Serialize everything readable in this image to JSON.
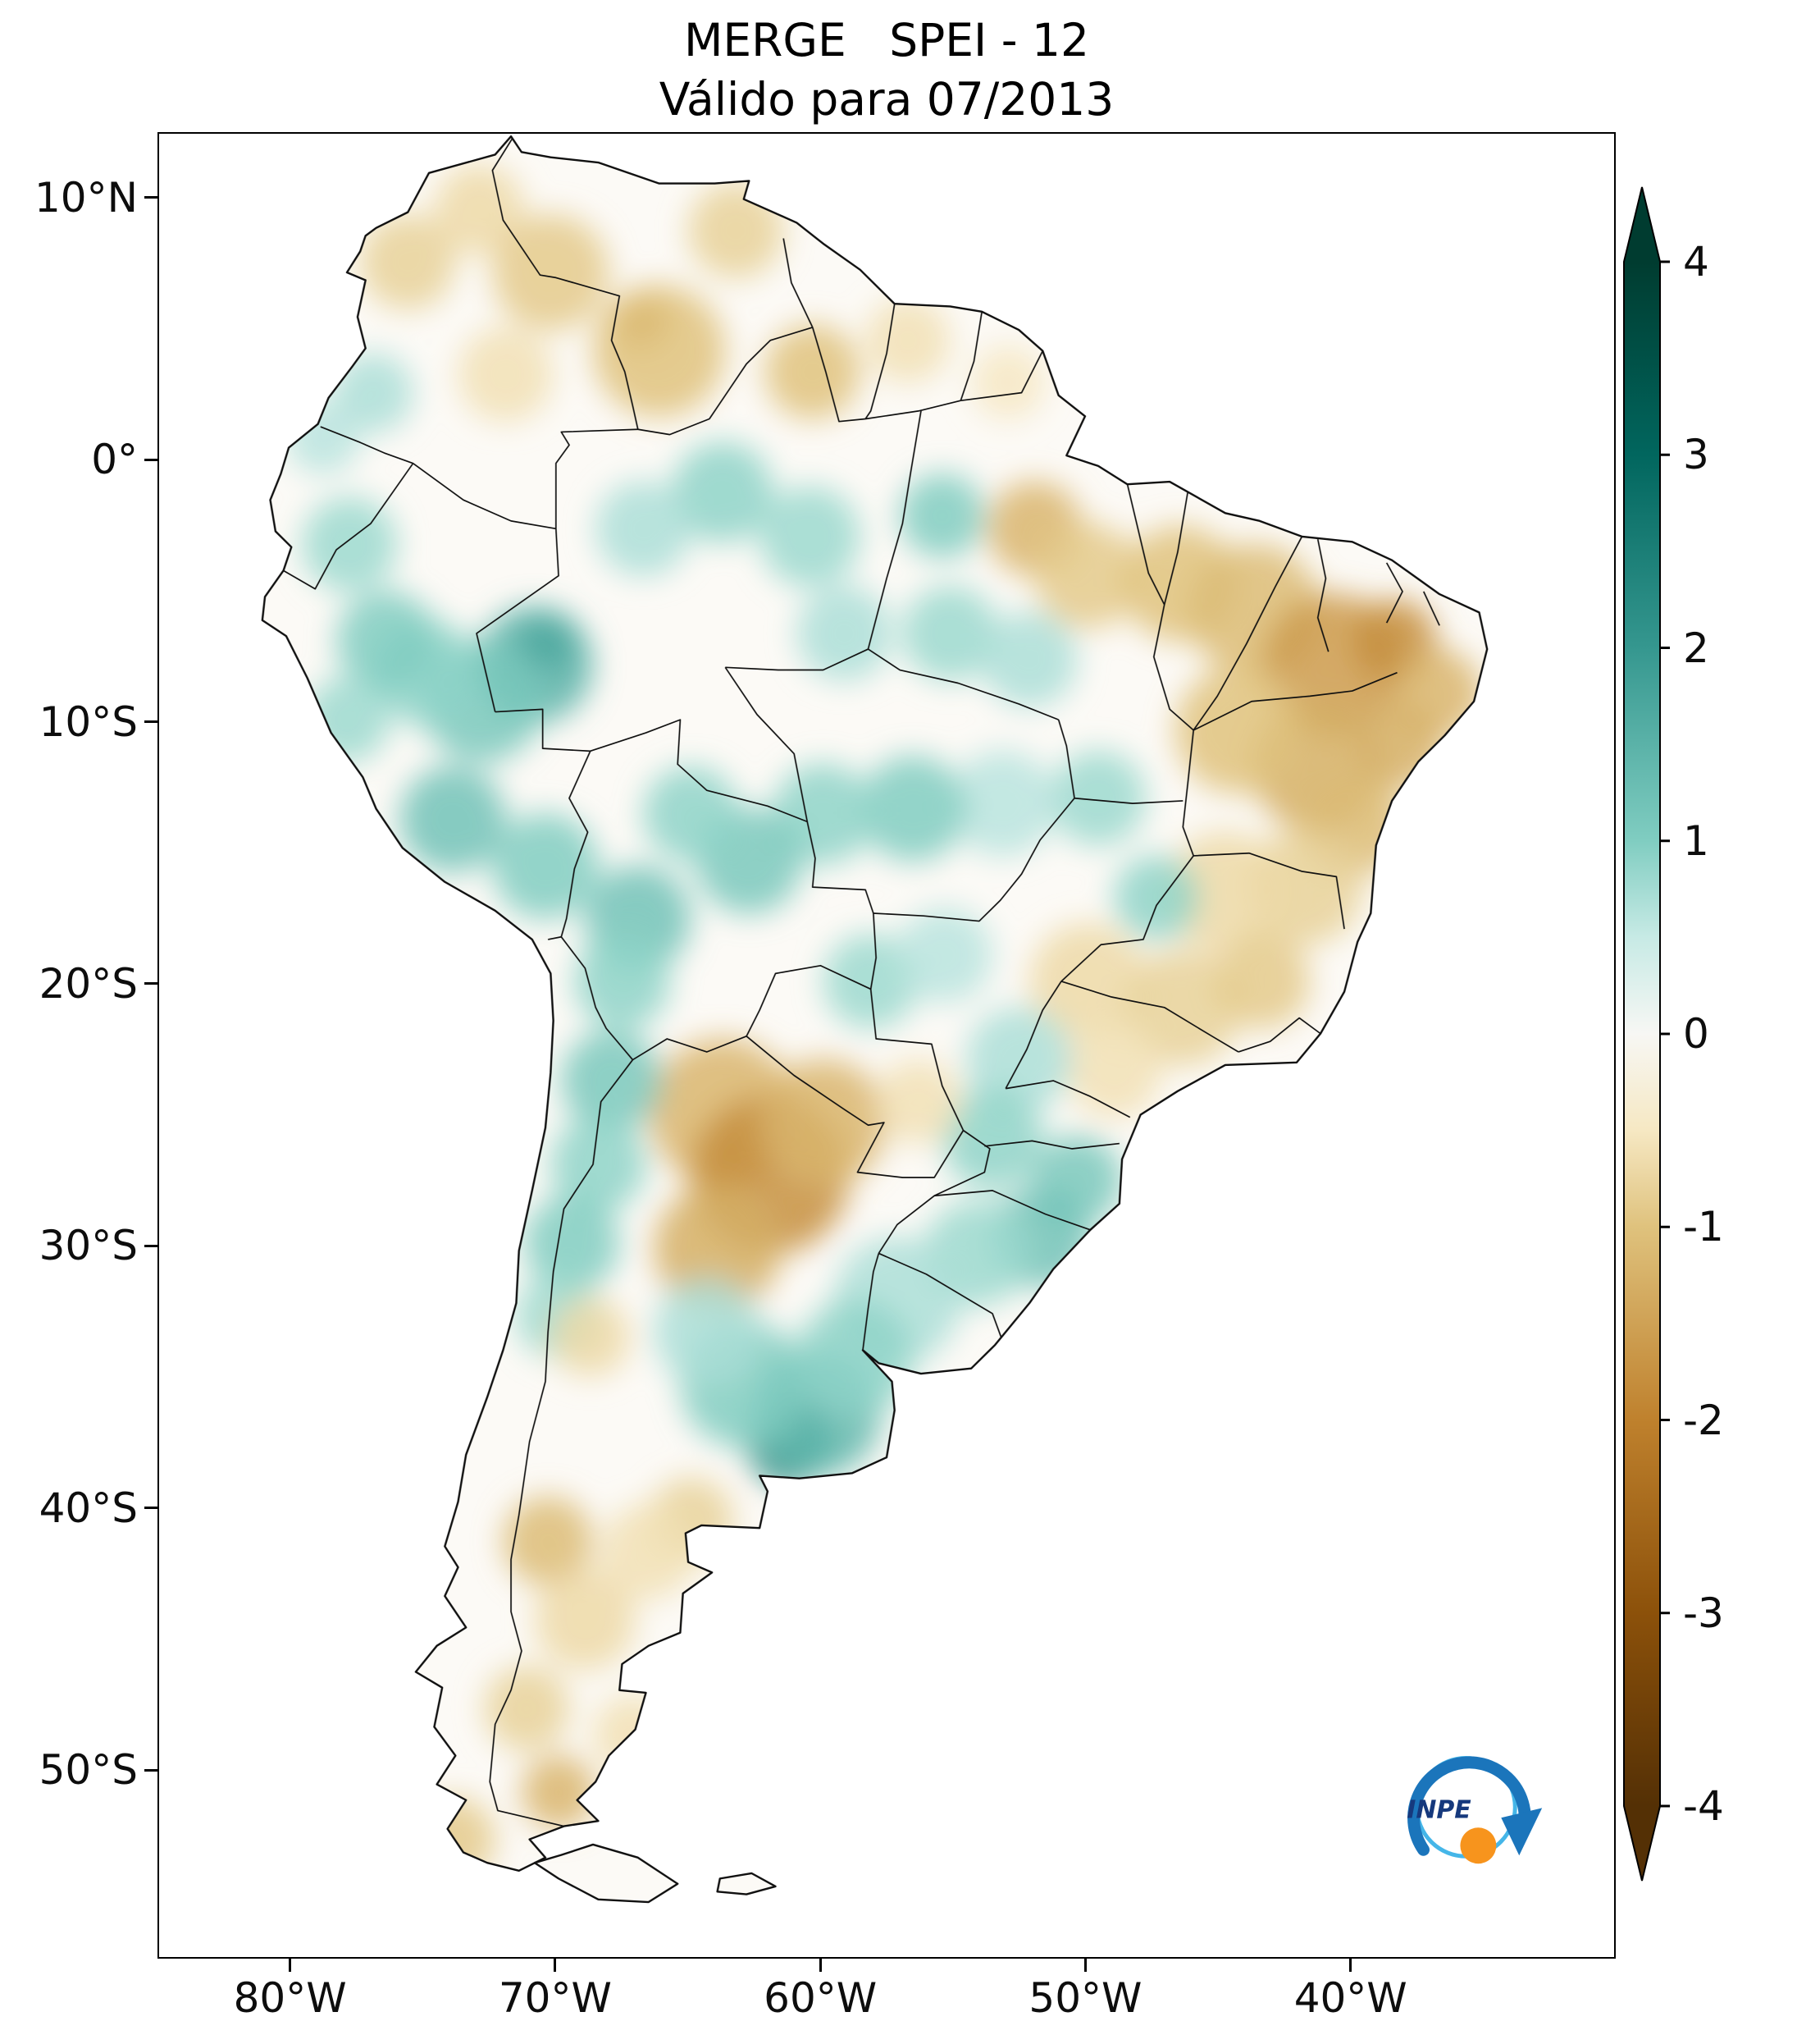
{
  "figure": {
    "title": "MERGE   SPEI - 12",
    "subtitle": "Válido para 07/2013"
  },
  "axes": {
    "x_ticks": [
      {
        "label": "80°W",
        "lon": -80
      },
      {
        "label": "70°W",
        "lon": -70
      },
      {
        "label": "60°W",
        "lon": -60
      },
      {
        "label": "50°W",
        "lon": -50
      },
      {
        "label": "40°W",
        "lon": -40
      }
    ],
    "y_ticks": [
      {
        "label": "10°N",
        "lat": 10
      },
      {
        "label": "0°",
        "lat": 0
      },
      {
        "label": "10°S",
        "lat": -10
      },
      {
        "label": "20°S",
        "lat": -20
      },
      {
        "label": "30°S",
        "lat": -30
      },
      {
        "label": "40°S",
        "lat": -40
      },
      {
        "label": "50°S",
        "lat": -50
      }
    ]
  },
  "colorbar": {
    "min": -4,
    "max": 4,
    "extend": "both",
    "colormap": "BrBG",
    "ticks": [
      {
        "label": "4",
        "value": 4
      },
      {
        "label": "3",
        "value": 3
      },
      {
        "label": "2",
        "value": 2
      },
      {
        "label": "1",
        "value": 1
      },
      {
        "label": "0",
        "value": 0
      },
      {
        "label": "-1",
        "value": -1
      },
      {
        "label": "-2",
        "value": -2
      },
      {
        "label": "-3",
        "value": -3
      },
      {
        "label": "-4",
        "value": -4
      }
    ],
    "stops": [
      {
        "v": -4,
        "c": "#543005"
      },
      {
        "v": -3,
        "c": "#8c510a"
      },
      {
        "v": -2,
        "c": "#bf812d"
      },
      {
        "v": -1,
        "c": "#dfc27d"
      },
      {
        "v": -0.5,
        "c": "#f6e8c3"
      },
      {
        "v": 0,
        "c": "#f7f7f4"
      },
      {
        "v": 0.5,
        "c": "#c7eae5"
      },
      {
        "v": 1,
        "c": "#80cdc1"
      },
      {
        "v": 2,
        "c": "#35978f"
      },
      {
        "v": 3,
        "c": "#01665e"
      },
      {
        "v": 4,
        "c": "#003c30"
      }
    ]
  },
  "logo": {
    "text": "INPE",
    "colors": {
      "swirl_light": "#45b6e8",
      "swirl_dark": "#1b75bb",
      "sphere": "#f7941d",
      "text": "#16397d"
    }
  },
  "chart_data": {
    "type": "heatmap",
    "title": "MERGE SPEI - 12",
    "subtitle": "Válido para 07/2013",
    "dataset": "MERGE",
    "index": "SPEI-12",
    "valid_for": "07/2013",
    "region": "South America",
    "lon_range": [
      -85,
      -30
    ],
    "lat_range": [
      -57.2,
      12.5
    ],
    "colorbar_range": [
      -4,
      4
    ],
    "colorbar_ticks": [
      4,
      3,
      2,
      1,
      0,
      -1,
      -2,
      -3,
      -4
    ],
    "colormap": "BrBG brown-white-teal diverging",
    "legend_position": "right",
    "anomalies": [
      {
        "lon": -70.3,
        "lat": -6.9,
        "v": 2.6,
        "r": 1.1
      },
      {
        "lon": -70.8,
        "lat": -7.8,
        "v": 1.5,
        "r": 2.2
      },
      {
        "lon": -72.8,
        "lat": -9.2,
        "v": 1.1,
        "r": 2.3
      },
      {
        "lon": -74.9,
        "lat": -8.1,
        "v": 0.9,
        "r": 2.0
      },
      {
        "lon": -77.8,
        "lat": -3.2,
        "v": 0.8,
        "r": 1.8
      },
      {
        "lon": -76.4,
        "lat": -6.9,
        "v": 1.0,
        "r": 1.9
      },
      {
        "lon": -77.9,
        "lat": -9.9,
        "v": 0.8,
        "r": 1.6
      },
      {
        "lon": -73.9,
        "lat": -13.7,
        "v": 1.2,
        "r": 2.0
      },
      {
        "lon": -70.4,
        "lat": -15.5,
        "v": 1.0,
        "r": 2.0
      },
      {
        "lon": -76.9,
        "lat": 2.6,
        "v": 0.7,
        "r": 1.5
      },
      {
        "lon": -78.8,
        "lat": 0.9,
        "v": 0.6,
        "r": 1.4
      },
      {
        "lon": -75.6,
        "lat": 7.6,
        "v": -0.8,
        "r": 1.8
      },
      {
        "lon": -72.9,
        "lat": 9.6,
        "v": -0.7,
        "r": 1.7
      },
      {
        "lon": -70.2,
        "lat": 7.2,
        "v": -0.9,
        "r": 2.2
      },
      {
        "lon": -71.9,
        "lat": 3.3,
        "v": -0.6,
        "r": 1.8
      },
      {
        "lon": -66.8,
        "lat": 5.4,
        "v": -1.7,
        "r": 1.1
      },
      {
        "lon": -66.1,
        "lat": 4.2,
        "v": -1.0,
        "r": 2.5
      },
      {
        "lon": -63.2,
        "lat": 8.8,
        "v": -0.8,
        "r": 1.8
      },
      {
        "lon": -60.3,
        "lat": 3.4,
        "v": -1.0,
        "r": 1.8
      },
      {
        "lon": -56.7,
        "lat": 4.6,
        "v": -0.6,
        "r": 1.6
      },
      {
        "lon": -52.9,
        "lat": 3.0,
        "v": -0.5,
        "r": 1.4
      },
      {
        "lon": -51.9,
        "lat": -2.6,
        "v": -1.2,
        "r": 1.8
      },
      {
        "lon": -49.9,
        "lat": -4.4,
        "v": -0.9,
        "r": 2.0
      },
      {
        "lon": -55.4,
        "lat": -2.1,
        "v": 1.0,
        "r": 1.6
      },
      {
        "lon": -60.4,
        "lat": -2.9,
        "v": 0.8,
        "r": 1.9
      },
      {
        "lon": -63.7,
        "lat": -1.2,
        "v": 0.9,
        "r": 1.9
      },
      {
        "lon": -66.7,
        "lat": -2.6,
        "v": 0.7,
        "r": 1.8
      },
      {
        "lon": -59.1,
        "lat": -6.6,
        "v": 0.7,
        "r": 1.8
      },
      {
        "lon": -55.1,
        "lat": -6.6,
        "v": 0.8,
        "r": 1.8
      },
      {
        "lon": -52.1,
        "lat": -7.6,
        "v": 0.7,
        "r": 1.8
      },
      {
        "lon": -46.4,
        "lat": -4.7,
        "v": -1.0,
        "r": 2.2
      },
      {
        "lon": -43.6,
        "lat": -5.7,
        "v": -1.1,
        "r": 2.5
      },
      {
        "lon": -40.6,
        "lat": -7.8,
        "v": -1.6,
        "r": 2.7
      },
      {
        "lon": -38.3,
        "lat": -6.9,
        "v": -1.8,
        "r": 1.6
      },
      {
        "lon": -36.7,
        "lat": -8.9,
        "v": -1.2,
        "r": 1.7
      },
      {
        "lon": -38.1,
        "lat": -10.9,
        "v": -1.3,
        "r": 1.6
      },
      {
        "lon": -41.2,
        "lat": -11.7,
        "v": -1.3,
        "r": 2.5
      },
      {
        "lon": -44.2,
        "lat": -10.3,
        "v": -1.0,
        "r": 2.4
      },
      {
        "lon": -39.9,
        "lat": -13.9,
        "v": -1.1,
        "r": 2.0
      },
      {
        "lon": -41.7,
        "lat": -16.3,
        "v": -0.8,
        "r": 2.2
      },
      {
        "lon": -44.7,
        "lat": -16.5,
        "v": -0.7,
        "r": 2.3
      },
      {
        "lon": -49.5,
        "lat": -12.9,
        "v": 0.8,
        "r": 1.8
      },
      {
        "lon": -47.3,
        "lat": -16.7,
        "v": 0.9,
        "r": 1.6
      },
      {
        "lon": -53.1,
        "lat": -13.1,
        "v": 0.6,
        "r": 2.0
      },
      {
        "lon": -56.5,
        "lat": -13.3,
        "v": 1.0,
        "r": 2.0
      },
      {
        "lon": -59.9,
        "lat": -13.5,
        "v": 0.9,
        "r": 1.9
      },
      {
        "lon": -62.7,
        "lat": -15.3,
        "v": 1.1,
        "r": 2.0
      },
      {
        "lon": -64.9,
        "lat": -13.5,
        "v": 0.9,
        "r": 1.8
      },
      {
        "lon": -66.9,
        "lat": -17.5,
        "v": 1.2,
        "r": 2.0
      },
      {
        "lon": -58.1,
        "lat": -19.9,
        "v": 0.8,
        "r": 1.8
      },
      {
        "lon": -55.3,
        "lat": -18.9,
        "v": 0.6,
        "r": 1.8
      },
      {
        "lon": -49.9,
        "lat": -19.9,
        "v": -0.7,
        "r": 2.2
      },
      {
        "lon": -46.3,
        "lat": -20.9,
        "v": -0.8,
        "r": 2.2
      },
      {
        "lon": -43.3,
        "lat": -19.9,
        "v": -0.9,
        "r": 1.8
      },
      {
        "lon": -48.9,
        "lat": -23.3,
        "v": -0.6,
        "r": 1.8
      },
      {
        "lon": -52.5,
        "lat": -22.9,
        "v": 0.7,
        "r": 2.0
      },
      {
        "lon": -53.5,
        "lat": -25.9,
        "v": 0.9,
        "r": 1.9
      },
      {
        "lon": -50.3,
        "lat": -27.5,
        "v": 1.1,
        "r": 1.7
      },
      {
        "lon": -51.7,
        "lat": -29.7,
        "v": 1.2,
        "r": 1.9
      },
      {
        "lon": -54.1,
        "lat": -30.3,
        "v": 0.8,
        "r": 2.0
      },
      {
        "lon": -57.1,
        "lat": -32.1,
        "v": 0.7,
        "r": 2.4
      },
      {
        "lon": -63.7,
        "lat": -24.9,
        "v": -1.2,
        "r": 2.8
      },
      {
        "lon": -61.9,
        "lat": -27.3,
        "v": -1.8,
        "r": 3.0
      },
      {
        "lon": -59.9,
        "lat": -25.3,
        "v": -1.2,
        "r": 2.4
      },
      {
        "lon": -63.9,
        "lat": -30.1,
        "v": -1.3,
        "r": 2.4
      },
      {
        "lon": -56.3,
        "lat": -24.5,
        "v": -0.6,
        "r": 1.6
      },
      {
        "lon": -67.5,
        "lat": -19.9,
        "v": 0.9,
        "r": 1.8
      },
      {
        "lon": -67.9,
        "lat": -23.7,
        "v": 1.1,
        "r": 1.9
      },
      {
        "lon": -68.4,
        "lat": -26.9,
        "v": 0.9,
        "r": 1.8
      },
      {
        "lon": -69.4,
        "lat": -29.9,
        "v": 1.0,
        "r": 1.8
      },
      {
        "lon": -69.9,
        "lat": -32.7,
        "v": 0.8,
        "r": 1.6
      },
      {
        "lon": -68.7,
        "lat": -33.5,
        "v": -0.7,
        "r": 1.5
      },
      {
        "lon": -61.2,
        "lat": -37.6,
        "v": 2.2,
        "r": 1.6
      },
      {
        "lon": -60.1,
        "lat": -36.4,
        "v": 1.4,
        "r": 2.4
      },
      {
        "lon": -62.9,
        "lat": -35.3,
        "v": 1.0,
        "r": 2.4
      },
      {
        "lon": -58.7,
        "lat": -34.3,
        "v": 0.9,
        "r": 2.2
      },
      {
        "lon": -64.3,
        "lat": -33.3,
        "v": 0.7,
        "r": 2.0
      },
      {
        "lon": -64.9,
        "lat": -40.5,
        "v": -0.8,
        "r": 1.6
      },
      {
        "lon": -70.3,
        "lat": -41.3,
        "v": -1.1,
        "r": 1.7
      },
      {
        "lon": -68.9,
        "lat": -44.3,
        "v": -0.7,
        "r": 1.9
      },
      {
        "lon": -71.1,
        "lat": -47.7,
        "v": -0.8,
        "r": 1.6
      },
      {
        "lon": -69.9,
        "lat": -50.9,
        "v": -1.2,
        "r": 1.4
      },
      {
        "lon": -66.5,
        "lat": -41.7,
        "v": -0.6,
        "r": 1.8
      },
      {
        "lon": -73.9,
        "lat": -52.7,
        "v": -0.9,
        "r": 1.6
      },
      {
        "lon": -67.1,
        "lat": -48.7,
        "v": -0.6,
        "r": 1.5
      }
    ]
  }
}
